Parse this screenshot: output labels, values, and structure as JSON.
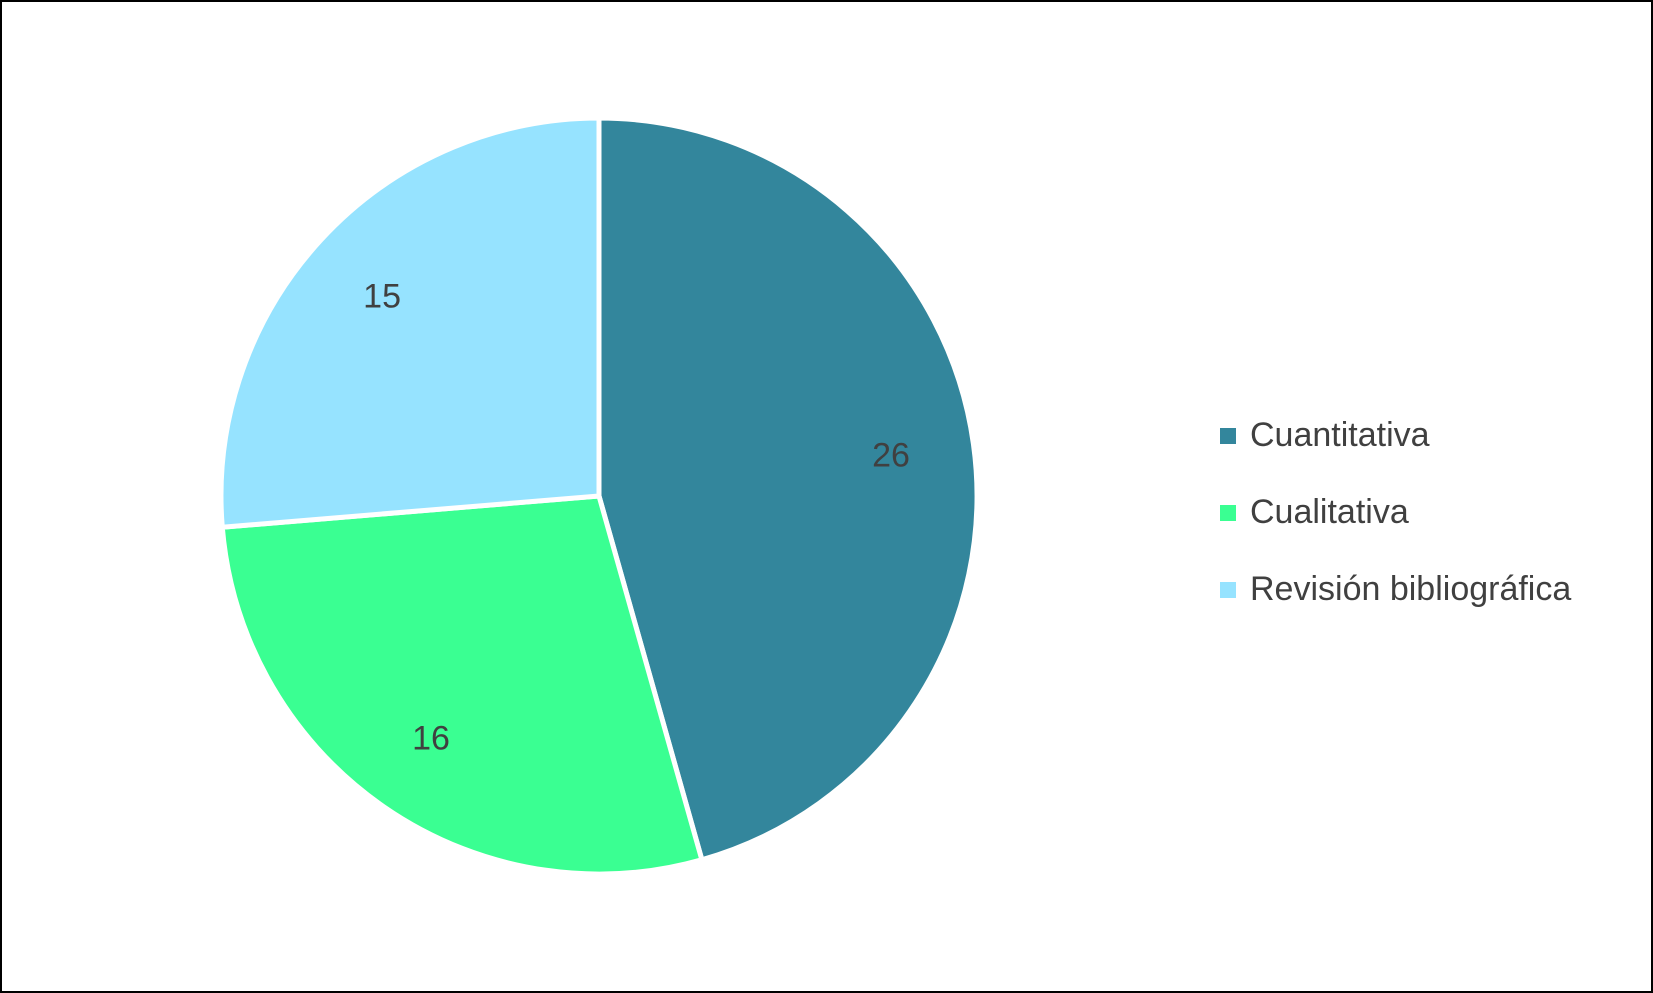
{
  "chart_data": {
    "type": "pie",
    "categories": [
      "Cuantitativa",
      "Cualitativa",
      "Revisión bibliográfica"
    ],
    "values": [
      26,
      16,
      15
    ],
    "colors": [
      "#33869C",
      "#3AFF92",
      "#96E3FF"
    ],
    "data_labels": [
      "26",
      "16",
      "15"
    ],
    "start_angle": "12 o'clock",
    "direction": "clockwise",
    "legend_position": "right"
  }
}
